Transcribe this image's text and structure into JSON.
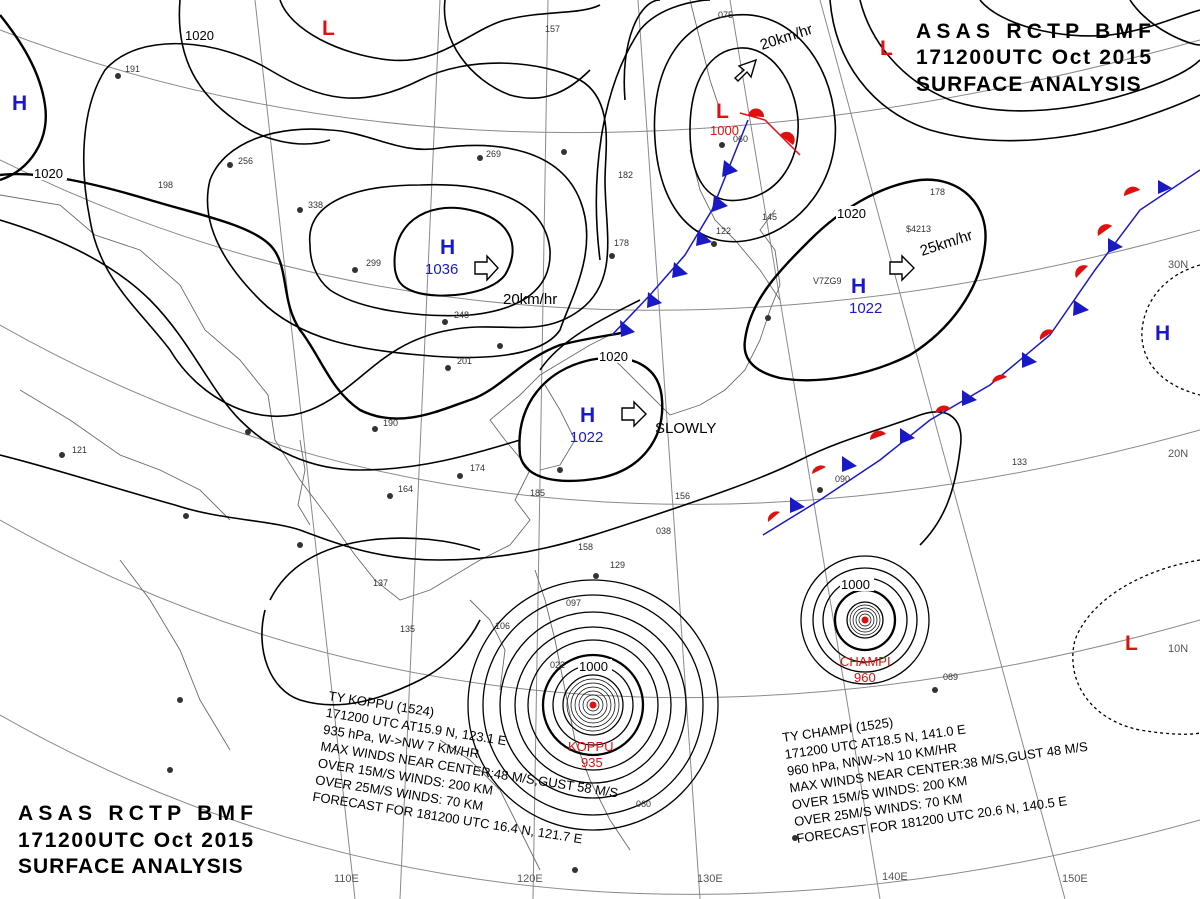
{
  "header": {
    "title": "ASAS RCTP BMF",
    "datetime": "171200UTC Oct 2015",
    "analysis": "SURFACE ANALYSIS"
  },
  "longitude_labels": [
    "110E",
    "120E",
    "130E",
    "140E",
    "150E"
  ],
  "latitude_labels": [
    "10N",
    "20N",
    "30N"
  ],
  "isobar_labels": [
    "1020",
    "1020",
    "1020",
    "1020",
    "1000",
    "1000",
    "1000"
  ],
  "pressure_systems": [
    {
      "type": "H",
      "pressure": "1036",
      "motion": "20km/hr"
    },
    {
      "type": "H",
      "pressure": "1022",
      "motion": "SLOWLY"
    },
    {
      "type": "H",
      "pressure": "1022",
      "motion": "25km/hr"
    },
    {
      "type": "L",
      "pressure": "1000",
      "motion": "20km/hr"
    },
    {
      "type": "H",
      "pressure": ""
    },
    {
      "type": "H",
      "pressure": ""
    },
    {
      "type": "L",
      "pressure": ""
    },
    {
      "type": "L",
      "pressure": ""
    },
    {
      "type": "L",
      "pressure": ""
    }
  ],
  "typhoons": [
    {
      "name": "KOPPU",
      "center_pressure": "935",
      "text": [
        "TY KOPPU (1524)",
        "171200 UTC AT15.9 N, 123.1 E",
        "935 hPa, W->NW 7 KM/HR",
        "MAX WINDS NEAR CENTER:48 M/S,GUST 58 M/S",
        "OVER 15M/S WINDS: 200 KM",
        "OVER 25M/S WINDS: 70 KM",
        "FORECAST FOR 181200 UTC 16.4 N, 121.7 E"
      ]
    },
    {
      "name": "CHAMPI",
      "center_pressure": "960",
      "text": [
        "TY CHAMPI (1525)",
        "171200 UTC AT18.5 N, 141.0 E",
        "960 hPa, NNW->N 10 KM/HR",
        "MAX WINDS NEAR CENTER:38 M/S,GUST 48 M/S",
        "OVER 15M/S WINDS: 200 KM",
        "OVER 25M/S WINDS: 70 KM",
        "FORECAST FOR 181200 UTC 20.6 N, 140.5 E"
      ]
    }
  ],
  "station_values": [
    "191",
    "157",
    "075",
    "256",
    "269",
    "338",
    "299",
    "198",
    "182",
    "178",
    "145",
    "248",
    "201",
    "190",
    "174",
    "164",
    "185",
    "121",
    "137",
    "135",
    "158",
    "129",
    "156",
    "097",
    "106",
    "022",
    "089",
    "133",
    "090",
    "060",
    "038",
    "178",
    "V7ZG9",
    "$4213",
    "122",
    "060"
  ],
  "colors": {
    "high": "#1919c8",
    "low": "#e01010",
    "cold_front": "#1919c8",
    "warm_front": "#e01010",
    "isobar": "#000000",
    "grid": "#8a8a8a"
  }
}
